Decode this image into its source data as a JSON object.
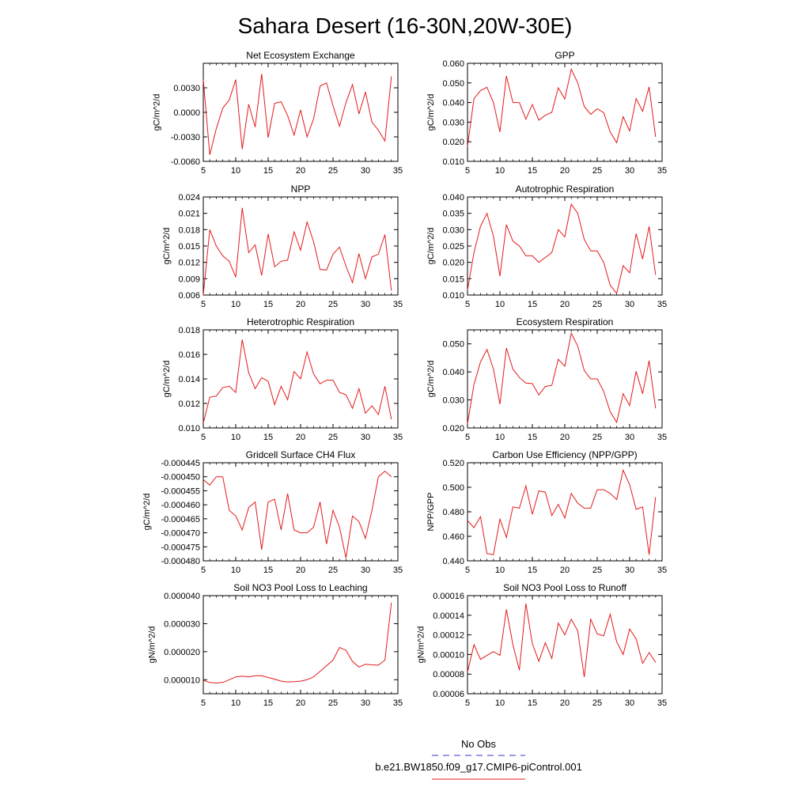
{
  "figure_title": "Sahara Desert (16-30N,20W-30E)",
  "legend": {
    "entries": [
      {
        "label": "No Obs",
        "color": "#3333cc",
        "dash": true
      },
      {
        "label": "b.e21.BW1850.f09_g17.CMIP6-piControl.001",
        "color": "#e41a1c",
        "dash": false
      }
    ]
  },
  "colors": {
    "line": "#e41a1c",
    "obs": "#3333cc"
  },
  "chart_data": [
    {
      "type": "line",
      "title": "Net Ecosystem Exchange",
      "ylabel": "gC/m^2/d",
      "xlim": [
        5,
        35
      ],
      "ylim": [
        -0.006,
        0.006
      ],
      "xticks": [
        5,
        10,
        15,
        20,
        25,
        30,
        35
      ],
      "xtick_labels": [
        "5",
        "10",
        "15",
        "20",
        "25",
        "30",
        "35"
      ],
      "yticks": [
        -0.006,
        -0.003,
        0.0,
        0.003
      ],
      "ytick_labels": [
        "-0.0060",
        "-0.0030",
        "0.0000",
        "0.0030"
      ],
      "x": [
        5,
        6,
        7,
        8,
        9,
        10,
        11,
        12,
        13,
        14,
        15,
        16,
        17,
        18,
        19,
        20,
        21,
        22,
        23,
        24,
        25,
        26,
        27,
        28,
        29,
        30,
        31,
        32,
        33,
        34
      ],
      "series": [
        {
          "values": [
            0.004,
            -0.0052,
            -0.002,
            0.0005,
            0.0015,
            0.004,
            -0.0045,
            0.001,
            -0.0018,
            0.0047,
            -0.0031,
            0.0011,
            0.0013,
            -0.0004,
            -0.0028,
            0.0003,
            -0.003,
            -0.0008,
            0.0032,
            0.0036,
            0.0008,
            -0.0017,
            0.0012,
            0.0034,
            -0.0002,
            0.0025,
            -0.0012,
            -0.0022,
            -0.0035,
            0.0044
          ]
        }
      ]
    },
    {
      "type": "line",
      "title": "GPP",
      "ylabel": "gC/m^2/d",
      "xlim": [
        5,
        35
      ],
      "ylim": [
        0.01,
        0.06
      ],
      "xticks": [
        5,
        10,
        15,
        20,
        25,
        30,
        35
      ],
      "xtick_labels": [
        "5",
        "10",
        "15",
        "20",
        "25",
        "30",
        "35"
      ],
      "yticks": [
        0.01,
        0.02,
        0.03,
        0.04,
        0.05,
        0.06
      ],
      "ytick_labels": [
        "0.010",
        "0.020",
        "0.030",
        "0.040",
        "0.050",
        "0.060"
      ],
      "x": [
        5,
        6,
        7,
        8,
        9,
        10,
        11,
        12,
        13,
        14,
        15,
        16,
        17,
        18,
        19,
        20,
        21,
        22,
        23,
        24,
        25,
        26,
        27,
        28,
        29,
        30,
        31,
        32,
        33,
        34
      ],
      "series": [
        {
          "values": [
            0.0175,
            0.042,
            0.046,
            0.0478,
            0.04,
            0.025,
            0.0535,
            0.04,
            0.04,
            0.0315,
            0.039,
            0.031,
            0.0335,
            0.035,
            0.0475,
            0.0418,
            0.057,
            0.05,
            0.038,
            0.034,
            0.0368,
            0.0348,
            0.025,
            0.0195,
            0.0328,
            0.0255,
            0.042,
            0.0355,
            0.048,
            0.0225
          ]
        }
      ]
    },
    {
      "type": "line",
      "title": "NPP",
      "ylabel": "gC/m^2/d",
      "xlim": [
        5,
        35
      ],
      "ylim": [
        0.006,
        0.024
      ],
      "xticks": [
        5,
        10,
        15,
        20,
        25,
        30,
        35
      ],
      "xtick_labels": [
        "5",
        "10",
        "15",
        "20",
        "25",
        "30",
        "35"
      ],
      "yticks": [
        0.006,
        0.009,
        0.012,
        0.015,
        0.018,
        0.021,
        0.024
      ],
      "ytick_labels": [
        "0.006",
        "0.009",
        "0.012",
        "0.015",
        "0.018",
        "0.021",
        "0.024"
      ],
      "x": [
        5,
        6,
        7,
        8,
        9,
        10,
        11,
        12,
        13,
        14,
        15,
        16,
        17,
        18,
        19,
        20,
        21,
        22,
        23,
        24,
        25,
        26,
        27,
        28,
        29,
        30,
        31,
        32,
        33,
        34
      ],
      "series": [
        {
          "values": [
            0.006,
            0.018,
            0.015,
            0.0132,
            0.0122,
            0.0093,
            0.022,
            0.0138,
            0.0152,
            0.0096,
            0.0172,
            0.0112,
            0.0122,
            0.0124,
            0.0176,
            0.0142,
            0.0194,
            0.0158,
            0.0107,
            0.0106,
            0.0135,
            0.0148,
            0.0113,
            0.0083,
            0.0136,
            0.009,
            0.013,
            0.0135,
            0.0171,
            0.0068
          ]
        }
      ]
    },
    {
      "type": "line",
      "title": "Autotrophic Respiration",
      "ylabel": "gC/m^2/d",
      "xlim": [
        5,
        35
      ],
      "ylim": [
        0.01,
        0.04
      ],
      "xticks": [
        5,
        10,
        15,
        20,
        25,
        30,
        35
      ],
      "xtick_labels": [
        "5",
        "10",
        "15",
        "20",
        "25",
        "30",
        "35"
      ],
      "yticks": [
        0.01,
        0.015,
        0.02,
        0.025,
        0.03,
        0.035,
        0.04
      ],
      "ytick_labels": [
        "0.010",
        "0.015",
        "0.020",
        "0.025",
        "0.030",
        "0.035",
        "0.040"
      ],
      "x": [
        5,
        6,
        7,
        8,
        9,
        10,
        11,
        12,
        13,
        14,
        15,
        16,
        17,
        18,
        19,
        20,
        21,
        22,
        23,
        24,
        25,
        26,
        27,
        28,
        29,
        30,
        31,
        32,
        33,
        34
      ],
      "series": [
        {
          "values": [
            0.0115,
            0.023,
            0.031,
            0.035,
            0.028,
            0.0158,
            0.0315,
            0.0265,
            0.025,
            0.022,
            0.022,
            0.02,
            0.0215,
            0.023,
            0.03,
            0.0278,
            0.0378,
            0.035,
            0.027,
            0.0235,
            0.0235,
            0.02,
            0.013,
            0.0105,
            0.019,
            0.0168,
            0.0288,
            0.021,
            0.031,
            0.0162
          ]
        }
      ]
    },
    {
      "type": "line",
      "title": "Heterotrophic Respiration",
      "ylabel": "gC/m^2/d",
      "xlim": [
        5,
        35
      ],
      "ylim": [
        0.01,
        0.018
      ],
      "xticks": [
        5,
        10,
        15,
        20,
        25,
        30,
        35
      ],
      "xtick_labels": [
        "5",
        "10",
        "15",
        "20",
        "25",
        "30",
        "35"
      ],
      "yticks": [
        0.01,
        0.012,
        0.014,
        0.016,
        0.018
      ],
      "ytick_labels": [
        "0.010",
        "0.012",
        "0.014",
        "0.016",
        "0.018"
      ],
      "x": [
        5,
        6,
        7,
        8,
        9,
        10,
        11,
        12,
        13,
        14,
        15,
        16,
        17,
        18,
        19,
        20,
        21,
        22,
        23,
        24,
        25,
        26,
        27,
        28,
        29,
        30,
        31,
        32,
        33,
        34
      ],
      "series": [
        {
          "values": [
            0.0104,
            0.0125,
            0.0126,
            0.0133,
            0.0134,
            0.0129,
            0.0172,
            0.0145,
            0.0132,
            0.0141,
            0.0138,
            0.0119,
            0.0134,
            0.0123,
            0.0146,
            0.014,
            0.0162,
            0.0144,
            0.0136,
            0.0139,
            0.0139,
            0.0129,
            0.0127,
            0.0116,
            0.0132,
            0.0112,
            0.0118,
            0.0111,
            0.0134,
            0.0107
          ]
        }
      ]
    },
    {
      "type": "line",
      "title": "Ecosystem Respiration",
      "ylabel": "gC/m^2/d",
      "xlim": [
        5,
        35
      ],
      "ylim": [
        0.02,
        0.055
      ],
      "xticks": [
        5,
        10,
        15,
        20,
        25,
        30,
        35
      ],
      "xtick_labels": [
        "5",
        "10",
        "15",
        "20",
        "25",
        "30",
        "35"
      ],
      "yticks": [
        0.02,
        0.03,
        0.04,
        0.05
      ],
      "ytick_labels": [
        "0.020",
        "0.030",
        "0.040",
        "0.050"
      ],
      "x": [
        5,
        6,
        7,
        8,
        9,
        10,
        11,
        12,
        13,
        14,
        15,
        16,
        17,
        18,
        19,
        20,
        21,
        22,
        23,
        24,
        25,
        26,
        27,
        28,
        29,
        30,
        31,
        32,
        33,
        34
      ],
      "series": [
        {
          "values": [
            0.0215,
            0.0355,
            0.0435,
            0.048,
            0.041,
            0.0285,
            0.0485,
            0.041,
            0.038,
            0.036,
            0.0358,
            0.0318,
            0.0348,
            0.0352,
            0.0445,
            0.042,
            0.0538,
            0.0492,
            0.0405,
            0.0375,
            0.0375,
            0.033,
            0.0258,
            0.022,
            0.0322,
            0.028,
            0.0402,
            0.0322,
            0.044,
            0.027
          ]
        }
      ]
    },
    {
      "type": "line",
      "title": "Gridcell Surface CH4 Flux",
      "ylabel": "gC/m^2/d",
      "xlim": [
        5,
        35
      ],
      "ylim": [
        -0.00048,
        -0.000445
      ],
      "xticks": [
        5,
        10,
        15,
        20,
        25,
        30,
        35
      ],
      "xtick_labels": [
        "5",
        "10",
        "15",
        "20",
        "25",
        "30",
        "35"
      ],
      "yticks": [
        -0.00048,
        -0.000475,
        -0.00047,
        -0.000465,
        -0.00046,
        -0.000455,
        -0.00045,
        -0.000445
      ],
      "ytick_labels": [
        "-0.000480",
        "-0.000475",
        "-0.000470",
        "-0.000465",
        "-0.000460",
        "-0.000455",
        "-0.000450",
        "-0.000445"
      ],
      "x": [
        5,
        6,
        7,
        8,
        9,
        10,
        11,
        12,
        13,
        14,
        15,
        16,
        17,
        18,
        19,
        20,
        21,
        22,
        23,
        24,
        25,
        26,
        27,
        28,
        29,
        30,
        31,
        32,
        33,
        34
      ],
      "series": [
        {
          "values": [
            -0.000451,
            -0.000453,
            -0.00045,
            -0.00045,
            -0.000462,
            -0.000464,
            -0.000469,
            -0.000461,
            -0.000459,
            -0.000476,
            -0.000459,
            -0.000458,
            -0.000469,
            -0.000456,
            -0.000469,
            -0.00047,
            -0.00047,
            -0.000468,
            -0.000459,
            -0.000474,
            -0.000462,
            -0.000468,
            -0.000479,
            -0.000464,
            -0.000466,
            -0.000472,
            -0.000462,
            -0.00045,
            -0.000448,
            -0.00045
          ]
        }
      ]
    },
    {
      "type": "line",
      "title": "Carbon Use Efficiency (NPP/GPP)",
      "ylabel": "NPP/GPP",
      "xlim": [
        5,
        35
      ],
      "ylim": [
        0.44,
        0.52
      ],
      "xticks": [
        5,
        10,
        15,
        20,
        25,
        30,
        35
      ],
      "xtick_labels": [
        "5",
        "10",
        "15",
        "20",
        "25",
        "30",
        "35"
      ],
      "yticks": [
        0.44,
        0.46,
        0.48,
        0.5,
        0.52
      ],
      "ytick_labels": [
        "0.440",
        "0.460",
        "0.480",
        "0.500",
        "0.520"
      ],
      "x": [
        5,
        6,
        7,
        8,
        9,
        10,
        11,
        12,
        13,
        14,
        15,
        16,
        17,
        18,
        19,
        20,
        21,
        22,
        23,
        24,
        25,
        26,
        27,
        28,
        29,
        30,
        31,
        32,
        33,
        34
      ],
      "series": [
        {
          "values": [
            0.473,
            0.467,
            0.476,
            0.446,
            0.445,
            0.474,
            0.459,
            0.484,
            0.483,
            0.501,
            0.478,
            0.497,
            0.496,
            0.477,
            0.486,
            0.475,
            0.495,
            0.487,
            0.483,
            0.483,
            0.498,
            0.498,
            0.495,
            0.49,
            0.514,
            0.502,
            0.482,
            0.484,
            0.445,
            0.492
          ]
        }
      ]
    },
    {
      "type": "line",
      "title": "Soil NO3 Pool Loss to Leaching",
      "ylabel": "gN/m^2/d",
      "xlim": [
        5,
        35
      ],
      "ylim": [
        5e-06,
        4e-05
      ],
      "xticks": [
        5,
        10,
        15,
        20,
        25,
        30,
        35
      ],
      "xtick_labels": [
        "5",
        "10",
        "15",
        "20",
        "25",
        "30",
        "35"
      ],
      "yticks": [
        1e-05,
        2e-05,
        3e-05,
        4e-05
      ],
      "ytick_labels": [
        "0.000010",
        "0.000020",
        "0.000030",
        "0.000040"
      ],
      "x": [
        5,
        6,
        7,
        8,
        9,
        10,
        11,
        12,
        13,
        14,
        15,
        16,
        17,
        18,
        19,
        20,
        21,
        22,
        23,
        24,
        25,
        26,
        27,
        28,
        29,
        30,
        31,
        32,
        33,
        34
      ],
      "series": [
        {
          "values": [
            9.8e-06,
            9e-06,
            8.8e-06,
            9e-06,
            1e-05,
            1.1e-05,
            1.13e-05,
            1.1e-05,
            1.14e-05,
            1.14e-05,
            1.08e-05,
            1.02e-05,
            9.5e-06,
            9.2e-06,
            9.3e-06,
            9.5e-06,
            1e-05,
            1.1e-05,
            1.3e-05,
            1.5e-05,
            1.7e-05,
            2.15e-05,
            2.05e-05,
            1.65e-05,
            1.45e-05,
            1.55e-05,
            1.53e-05,
            1.52e-05,
            1.7e-05,
            3.75e-05
          ]
        }
      ]
    },
    {
      "type": "line",
      "title": "Soil NO3 Pool Loss to Runoff",
      "ylabel": "gN/m^2/d",
      "xlim": [
        5,
        35
      ],
      "ylim": [
        6e-05,
        0.00016
      ],
      "xticks": [
        5,
        10,
        15,
        20,
        25,
        30,
        35
      ],
      "xtick_labels": [
        "5",
        "10",
        "15",
        "20",
        "25",
        "30",
        "35"
      ],
      "yticks": [
        6e-05,
        8e-05,
        0.0001,
        0.00012,
        0.00014,
        0.00016
      ],
      "ytick_labels": [
        "0.00006",
        "0.00008",
        "0.00010",
        "0.00012",
        "0.00014",
        "0.00016"
      ],
      "x": [
        5,
        6,
        7,
        8,
        9,
        10,
        11,
        12,
        13,
        14,
        15,
        16,
        17,
        18,
        19,
        20,
        21,
        22,
        23,
        24,
        25,
        26,
        27,
        28,
        29,
        30,
        31,
        32,
        33,
        34
      ],
      "series": [
        {
          "values": [
            8.2e-05,
            0.00011,
            9.5e-05,
            9.9e-05,
            0.000103,
            9.9e-05,
            0.000146,
            0.00011,
            8.4e-05,
            0.000152,
            0.000111,
            9.3e-05,
            0.000112,
            9.6e-05,
            0.000132,
            0.00012,
            0.000136,
            0.000124,
            7.7e-05,
            0.000136,
            0.000121,
            0.000119,
            0.000141,
            0.000113,
            0.0001,
            0.000126,
            0.000116,
            9.1e-05,
            0.000102,
            9.2e-05
          ]
        }
      ]
    }
  ]
}
